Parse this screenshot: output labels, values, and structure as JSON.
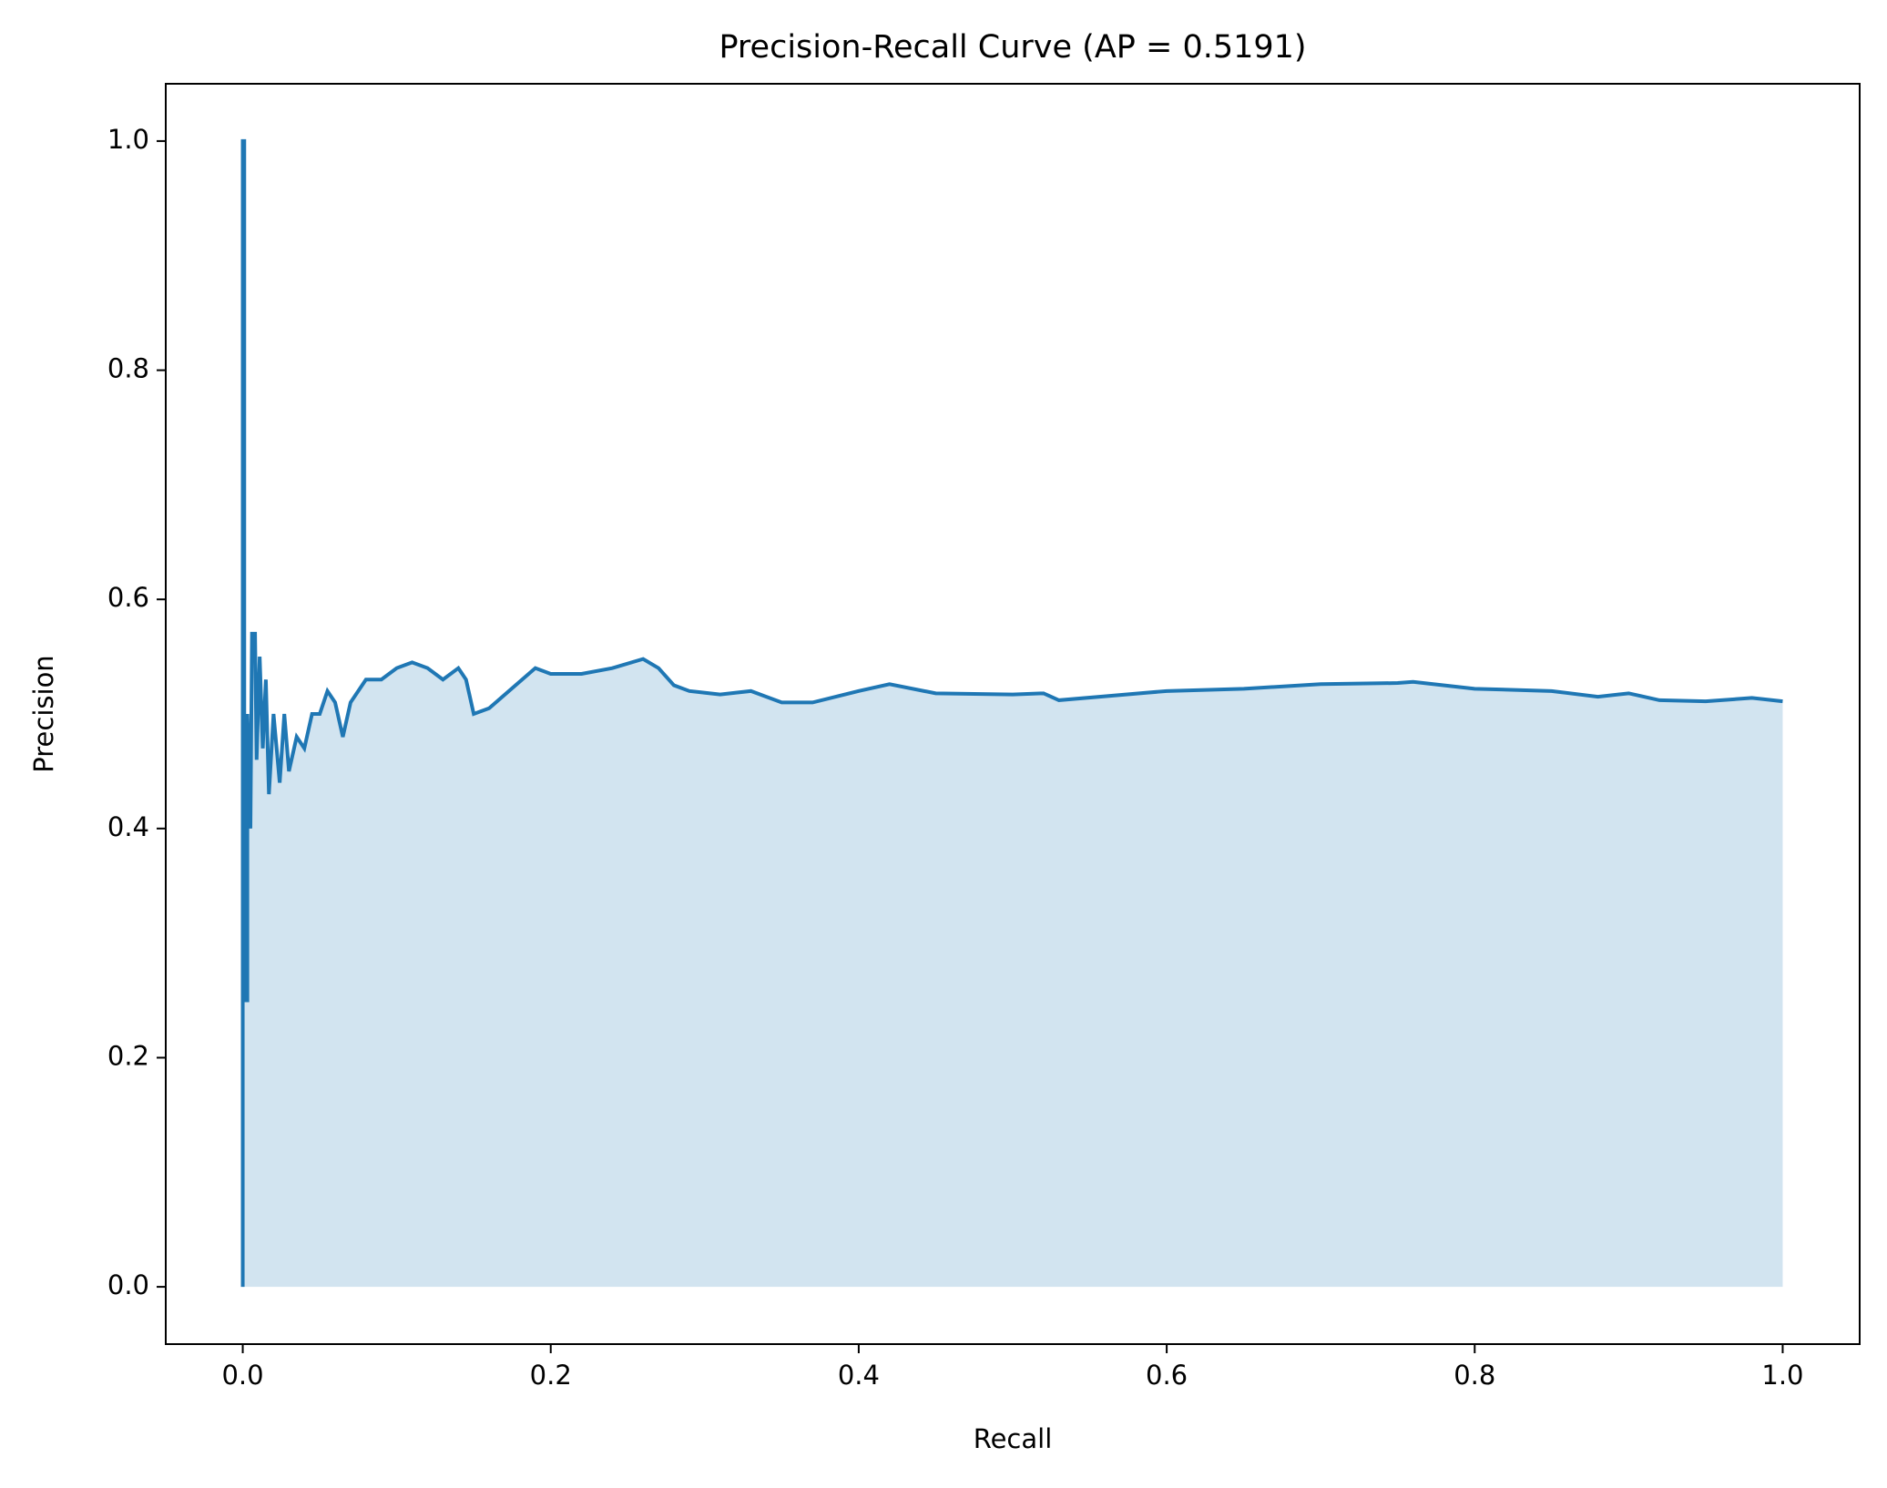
{
  "chart_data": {
    "type": "line",
    "title": "Precision-Recall Curve (AP = 0.5191)",
    "x_label": "Recall",
    "y_label": "Precision",
    "xlim": [
      -0.05,
      1.05
    ],
    "ylim": [
      -0.05,
      1.05
    ],
    "xticks": [
      {
        "value": 0,
        "label": "0.0"
      },
      0.2,
      0.4,
      0.6,
      0.8,
      {
        "value": 1,
        "label": "1.0"
      }
    ],
    "yticks": [
      {
        "value": 0,
        "label": "0.0"
      },
      0.2,
      0.4,
      0.6,
      0.8,
      {
        "value": 1,
        "label": "1.0"
      }
    ],
    "fill": true,
    "fill_opacity": 0.2,
    "series": [
      {
        "color": "#1f77b4",
        "x": [
          0,
          0,
          0.001,
          0.001,
          0.003,
          0.003,
          0.005,
          0.006,
          0.008,
          0.009,
          0.011,
          0.013,
          0.015,
          0.017,
          0.02,
          0.024,
          0.027,
          0.03,
          0.035,
          0.04,
          0.045,
          0.05,
          0.055,
          0.06,
          0.065,
          0.07,
          0.08,
          0.09,
          0.1,
          0.11,
          0.12,
          0.13,
          0.14,
          0.145,
          0.15,
          0.16,
          0.19,
          0.2,
          0.22,
          0.24,
          0.26,
          0.27,
          0.28,
          0.29,
          0.31,
          0.33,
          0.35,
          0.37,
          0.4,
          0.42,
          0.45,
          0.5,
          0.52,
          0.53,
          0.6,
          0.65,
          0.7,
          0.75,
          0.76,
          0.8,
          0.85,
          0.88,
          0.9,
          0.92,
          0.95,
          0.98,
          1.0
        ],
        "values": [
          0,
          1.0,
          1.0,
          0.25,
          0.25,
          0.5,
          0.4,
          0.57,
          0.57,
          0.46,
          0.55,
          0.47,
          0.53,
          0.43,
          0.5,
          0.44,
          0.5,
          0.45,
          0.48,
          0.47,
          0.5,
          0.5,
          0.52,
          0.51,
          0.48,
          0.51,
          0.53,
          0.53,
          0.54,
          0.545,
          0.54,
          0.53,
          0.54,
          0.53,
          0.5,
          0.505,
          0.54,
          0.535,
          0.535,
          0.54,
          0.548,
          0.54,
          0.525,
          0.52,
          0.517,
          0.52,
          0.51,
          0.51,
          0.52,
          0.526,
          0.518,
          0.517,
          0.518,
          0.512,
          0.52,
          0.522,
          0.526,
          0.527,
          0.528,
          0.522,
          0.52,
          0.515,
          0.518,
          0.512,
          0.511,
          0.514,
          0.511
        ]
      }
    ]
  }
}
